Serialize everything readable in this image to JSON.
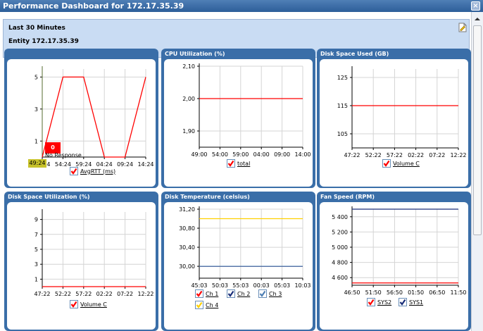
{
  "window": {
    "title": "Performance Dashboard for 172.17.35.39",
    "close_glyph": "×"
  },
  "info": {
    "range": "Last 30 Minutes",
    "entity": "Entity 172.17.35.39",
    "edit_icon": "edit-note-icon"
  },
  "colors": {
    "panel": "#3a6ea8",
    "grid": "#d4d4d4",
    "red": "#ff0000",
    "yellow": "#ffd000",
    "navy": "#1a2f7a",
    "steel": "#4e7fb4",
    "axis": "#000000"
  },
  "panels": [
    {
      "title": "",
      "chart_data": {
        "type": "line",
        "x": [
          "49:24",
          "54:24",
          "59:24",
          "04:24",
          "09:24",
          "14:24"
        ],
        "yticks": [
          1,
          3,
          5
        ],
        "ylim": [
          0,
          5.5
        ],
        "series": [
          {
            "name": "AvgRTT (ms)",
            "color": "#ff0000",
            "values": [
              0,
              5,
              5,
              0,
              0,
              5
            ]
          }
        ]
      },
      "tooltip_value": "0",
      "tooltip_note": "No Response",
      "highlight_x": "49:24",
      "legend": [
        {
          "label": "AvgRTT (ms)",
          "checked": true,
          "color": "#ff0000"
        }
      ]
    },
    {
      "title": "CPU Utilization (%)",
      "chart_data": {
        "type": "line",
        "x": [
          "49:00",
          "54:00",
          "59:00",
          "04:00",
          "09:00",
          "14:00"
        ],
        "yticks": [
          "1,90",
          "2,00",
          "2,10"
        ],
        "ylim": [
          1.85,
          2.1
        ],
        "series": [
          {
            "name": "total",
            "color": "#ff0000",
            "values": [
              2,
              2,
              2,
              2,
              2,
              2
            ]
          }
        ]
      },
      "legend": [
        {
          "label": "total",
          "checked": true,
          "color": "#ff0000"
        }
      ]
    },
    {
      "title": "Disk Space Used (GB)",
      "chart_data": {
        "type": "line",
        "x": [
          "47:22",
          "52:22",
          "57:22",
          "02:22",
          "07:22",
          "12:22"
        ],
        "yticks": [
          105,
          115,
          125
        ],
        "ylim": [
          100,
          128
        ],
        "series": [
          {
            "name": "Volume C",
            "color": "#ff0000",
            "values": [
              115,
              115,
              115,
              115,
              115,
              115
            ]
          }
        ]
      },
      "legend": [
        {
          "label": "Volume C",
          "checked": true,
          "color": "#ff0000"
        }
      ]
    },
    {
      "title": "Disk Space Utilization (%)",
      "chart_data": {
        "type": "line",
        "x": [
          "47:22",
          "52:22",
          "57:22",
          "02:22",
          "07:22",
          "12:22"
        ],
        "yticks": [
          1,
          3,
          5,
          7,
          9
        ],
        "ylim": [
          0,
          10
        ],
        "series": [
          {
            "name": "Volume C",
            "color": "#ff0000",
            "values": [
              0,
              0,
              0,
              0,
              0,
              0
            ]
          }
        ]
      },
      "legend": [
        {
          "label": "Volume C",
          "checked": true,
          "color": "#ff0000"
        }
      ]
    },
    {
      "title": "Disk Temperature (celsius)",
      "chart_data": {
        "type": "line",
        "x": [
          "45:03",
          "50:03",
          "55:03",
          "00:03",
          "05:03",
          "10:03"
        ],
        "yticks": [
          "30,00",
          "30,40",
          "30,80",
          "31,20"
        ],
        "ylim": [
          29.75,
          31.2
        ],
        "series": [
          {
            "name": "Ch 1",
            "color": "#ff0000",
            "values": [
              30,
              30,
              30,
              30,
              30,
              30
            ]
          },
          {
            "name": "Ch 2",
            "color": "#1a2f7a",
            "values": [
              30,
              30,
              30,
              30,
              30,
              30
            ]
          },
          {
            "name": "Ch 3",
            "color": "#4e7fb4",
            "values": [
              30,
              30,
              30,
              30,
              30,
              30
            ]
          },
          {
            "name": "Ch 4",
            "color": "#ffd000",
            "values": [
              31,
              31,
              31,
              31,
              31,
              31
            ]
          }
        ]
      },
      "legend": [
        {
          "label": "Ch 1",
          "checked": true,
          "color": "#ff0000"
        },
        {
          "label": "Ch 2",
          "checked": true,
          "color": "#1a2f7a"
        },
        {
          "label": "Ch 3",
          "checked": true,
          "color": "#4e7fb4"
        },
        {
          "label": "Ch 4",
          "checked": true,
          "color": "#ffd000"
        }
      ]
    },
    {
      "title": "Fan Speed (RPM)",
      "chart_data": {
        "type": "line",
        "x": [
          "46:50",
          "51:50",
          "56:50",
          "01:50",
          "06:50",
          "11:50"
        ],
        "yticks": [
          "4 600",
          "4 800",
          "5 000",
          "5 200",
          "5 400"
        ],
        "ylim": [
          4500,
          5500
        ],
        "series": [
          {
            "name": "SYS2",
            "color": "#ff0000",
            "values": [
              4530,
              4530,
              4530,
              4530,
              4530,
              4530
            ]
          },
          {
            "name": "SYS1",
            "color": "#1a2f7a",
            "values": [
              5500,
              5500,
              5500,
              5500,
              5500,
              5500
            ]
          }
        ]
      },
      "legend": [
        {
          "label": "SYS2",
          "checked": true,
          "color": "#ff0000"
        },
        {
          "label": "SYS1",
          "checked": true,
          "color": "#1a2f7a"
        }
      ]
    }
  ]
}
